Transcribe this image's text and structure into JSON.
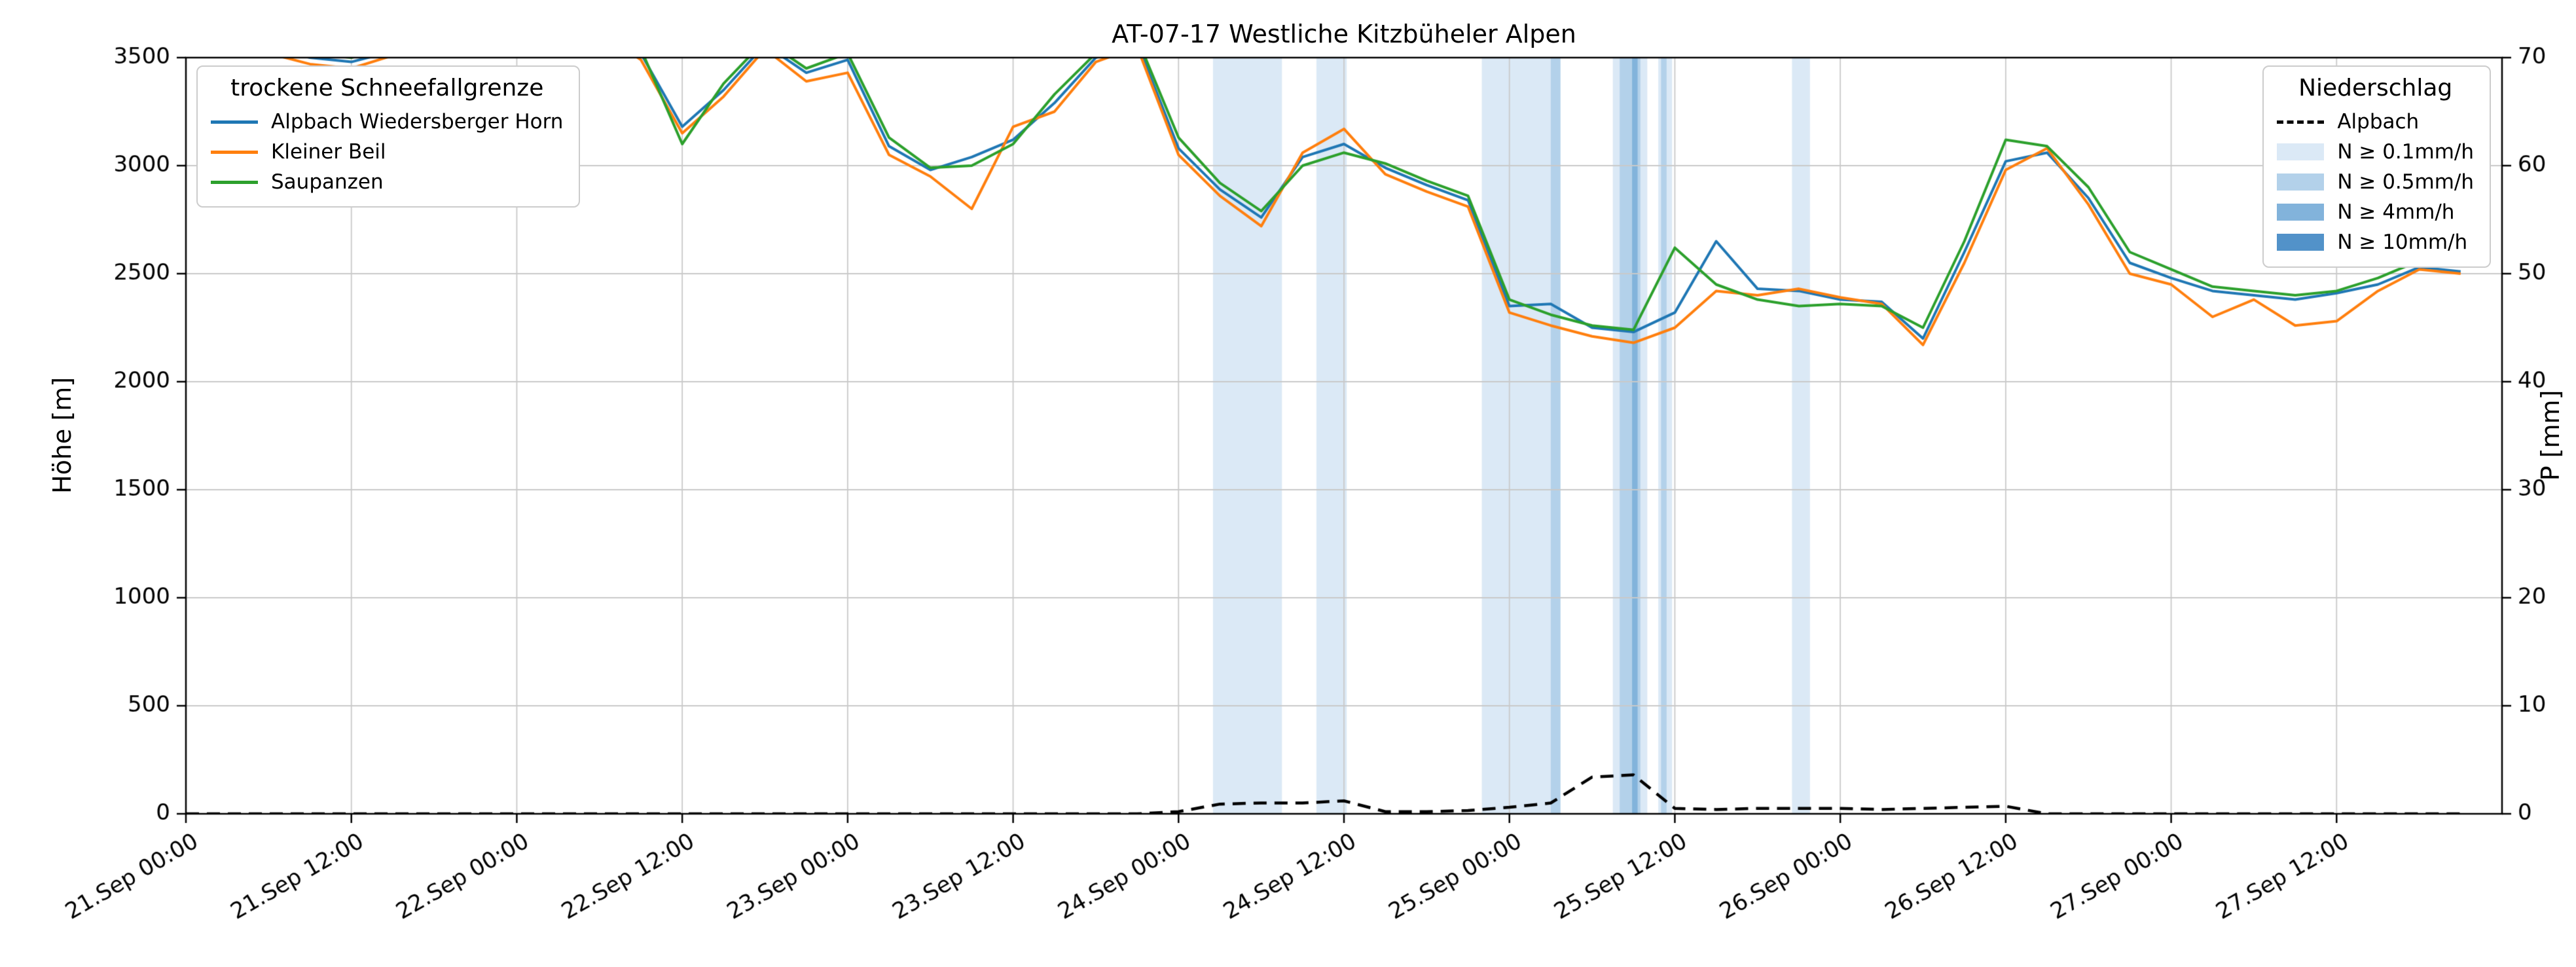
{
  "title": "AT-07-17 Westliche Kitzbüheler Alpen",
  "y_left_label": "Höhe [m]",
  "y_right_label": "P [mm]",
  "legend_left": {
    "title": "trockene Schneefallgrenze",
    "items": [
      {
        "label": "Alpbach Wiedersberger Horn",
        "color": "#1f77b4"
      },
      {
        "label": "Kleiner Beil",
        "color": "#ff7f0e"
      },
      {
        "label": "Saupanzen",
        "color": "#2ca02c"
      }
    ]
  },
  "legend_right": {
    "title": "Niederschlag",
    "line_item": {
      "label": "Alpbach",
      "color": "#000000",
      "dashed": true
    },
    "band_items": [
      {
        "label": "N ≥ 0.1mm/h",
        "color": "#dbe9f6"
      },
      {
        "label": "N ≥ 0.5mm/h",
        "color": "#b3d1ea"
      },
      {
        "label": "N ≥ 4mm/h",
        "color": "#82b3db"
      },
      {
        "label": "N ≥ 10mm/h",
        "color": "#5292c9"
      }
    ]
  },
  "chart_data": {
    "type": "line",
    "title": "AT-07-17 Westliche Kitzbüheler Alpen",
    "xlabel": "",
    "ylabel_left": "Höhe [m]",
    "ylabel_right": "P [mm]",
    "x_unit": "hours since 21.Sep 00:00",
    "x_range": [
      0,
      168
    ],
    "y_left_range": [
      0,
      3500
    ],
    "y_right_range": [
      0,
      70
    ],
    "grid": true,
    "y_left_ticks": [
      0,
      500,
      1000,
      1500,
      2000,
      2500,
      3000,
      3500
    ],
    "y_right_ticks": [
      0,
      10,
      20,
      30,
      40,
      50,
      60,
      70
    ],
    "x_ticks": [
      {
        "h": 0,
        "label": "21.Sep 00:00"
      },
      {
        "h": 12,
        "label": "21.Sep 12:00"
      },
      {
        "h": 24,
        "label": "22.Sep 00:00"
      },
      {
        "h": 36,
        "label": "22.Sep 12:00"
      },
      {
        "h": 48,
        "label": "23.Sep 00:00"
      },
      {
        "h": 60,
        "label": "23.Sep 12:00"
      },
      {
        "h": 72,
        "label": "24.Sep 00:00"
      },
      {
        "h": 84,
        "label": "24.Sep 12:00"
      },
      {
        "h": 96,
        "label": "25.Sep 00:00"
      },
      {
        "h": 108,
        "label": "25.Sep 12:00"
      },
      {
        "h": 120,
        "label": "26.Sep 00:00"
      },
      {
        "h": 132,
        "label": "26.Sep 12:00"
      },
      {
        "h": 144,
        "label": "27.Sep 00:00"
      },
      {
        "h": 156,
        "label": "27.Sep 12:00"
      }
    ],
    "hours": [
      0,
      3,
      6,
      9,
      12,
      15,
      18,
      21,
      24,
      27,
      30,
      33,
      36,
      39,
      42,
      45,
      48,
      51,
      54,
      57,
      60,
      63,
      66,
      69,
      72,
      75,
      78,
      81,
      84,
      87,
      90,
      93,
      96,
      99,
      102,
      105,
      108,
      111,
      114,
      117,
      120,
      123,
      126,
      129,
      132,
      135,
      138,
      141,
      144,
      147,
      150,
      153,
      156,
      159,
      162,
      165
    ],
    "series": [
      {
        "name": "Alpbach Wiedersberger Horn",
        "color": "#1f77b4",
        "axis": "left",
        "values": [
          3620,
          3580,
          3550,
          3500,
          3480,
          3530,
          3580,
          3620,
          3560,
          3600,
          3640,
          3520,
          3180,
          3350,
          3560,
          3430,
          3490,
          3090,
          2980,
          3040,
          3120,
          3290,
          3500,
          3570,
          3080,
          2890,
          2760,
          3040,
          3100,
          2990,
          2910,
          2840,
          2350,
          2360,
          2250,
          2230,
          2320,
          2650,
          2430,
          2420,
          2380,
          2370,
          2200,
          2600,
          3020,
          3060,
          2850,
          2550,
          2480,
          2420,
          2400,
          2380,
          2410,
          2450,
          2530,
          2510
        ]
      },
      {
        "name": "Kleiner Beil",
        "color": "#ff7f0e",
        "axis": "left",
        "values": [
          3600,
          3560,
          3520,
          3470,
          3450,
          3510,
          3560,
          3600,
          3540,
          3580,
          3620,
          3490,
          3150,
          3320,
          3540,
          3390,
          3430,
          3050,
          2950,
          2800,
          3180,
          3250,
          3480,
          3550,
          3050,
          2860,
          2720,
          3060,
          3170,
          2960,
          2880,
          2810,
          2320,
          2260,
          2210,
          2180,
          2250,
          2420,
          2400,
          2430,
          2390,
          2360,
          2170,
          2550,
          2980,
          3080,
          2820,
          2500,
          2450,
          2300,
          2380,
          2260,
          2280,
          2420,
          2520,
          2500
        ]
      },
      {
        "name": "Saupanzen",
        "color": "#2ca02c",
        "axis": "left",
        "values": [
          3640,
          3600,
          3560,
          3520,
          3500,
          3550,
          3600,
          3640,
          3580,
          3620,
          3660,
          3540,
          3100,
          3380,
          3580,
          3450,
          3520,
          3130,
          2990,
          3000,
          3100,
          3330,
          3520,
          3590,
          3130,
          2920,
          2790,
          3000,
          3060,
          3010,
          2930,
          2860,
          2380,
          2310,
          2260,
          2240,
          2620,
          2450,
          2380,
          2350,
          2360,
          2350,
          2250,
          2650,
          3120,
          3090,
          2900,
          2600,
          2520,
          2440,
          2420,
          2400,
          2420,
          2480,
          2560,
          2550
        ]
      }
    ],
    "precip_series": {
      "name": "Alpbach",
      "color": "#000000",
      "dashed": true,
      "axis": "right",
      "unit": "mm",
      "values": [
        0,
        0,
        0,
        0,
        0,
        0,
        0,
        0,
        0,
        0,
        0,
        0,
        0,
        0,
        0,
        0,
        0,
        0,
        0,
        0,
        0,
        0,
        0,
        0,
        0.2,
        0.9,
        1.0,
        1.0,
        1.2,
        0.2,
        0.2,
        0.3,
        0.6,
        1.0,
        3.4,
        3.6,
        0.5,
        0.4,
        0.5,
        0.5,
        0.5,
        0.4,
        0.5,
        0.6,
        0.7,
        0,
        0,
        0,
        0,
        0,
        0,
        0,
        0,
        0,
        0,
        0
      ]
    },
    "band_colors": [
      "#dbe9f6",
      "#b3d1ea",
      "#82b3db",
      "#5292c9"
    ],
    "band_levels_mm_per_h": [
      0.1,
      0.5,
      4,
      10
    ],
    "precip_bands": [
      {
        "start": 74.5,
        "end": 79.5,
        "level": 1
      },
      {
        "start": 82,
        "end": 84.2,
        "level": 1
      },
      {
        "start": 94,
        "end": 99.7,
        "level": 1
      },
      {
        "start": 99,
        "end": 99.7,
        "level": 2
      },
      {
        "start": 103.5,
        "end": 106,
        "level": 1
      },
      {
        "start": 104,
        "end": 105.5,
        "level": 2
      },
      {
        "start": 104.9,
        "end": 105.3,
        "level": 3
      },
      {
        "start": 106.8,
        "end": 107.8,
        "level": 1
      },
      {
        "start": 107,
        "end": 107.4,
        "level": 2
      },
      {
        "start": 116.5,
        "end": 117.8,
        "level": 1
      }
    ]
  }
}
